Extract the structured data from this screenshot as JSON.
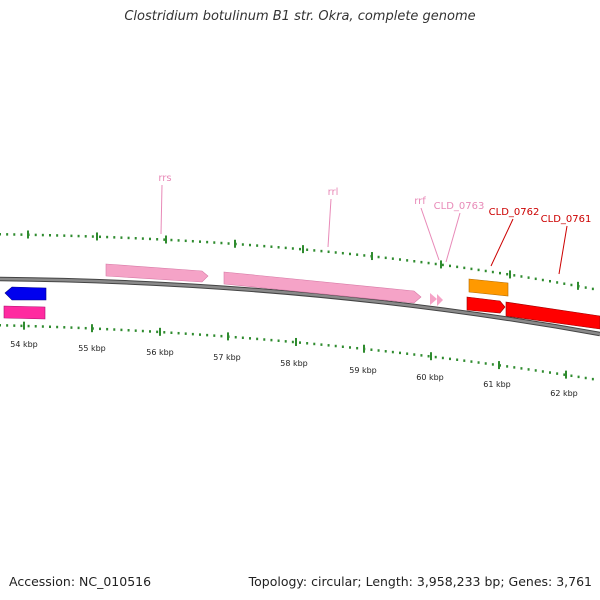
{
  "title": "Clostridium botulinum B1 str. Okra, complete genome",
  "footer": {
    "accession": "Accession: NC_010516",
    "summary": "Topology: circular; Length: 3,958,233 bp; Genes: 3,761"
  },
  "colors": {
    "backbone": "#8a8a8a",
    "tick_green": "#2e8b2e",
    "rna": "#f5a3c7",
    "rna_label": "#e88ab8",
    "cds_red": "#ff0000",
    "cds_red_label": "#cc0000",
    "orange": "#ff9900",
    "blue": "#0000ee",
    "magenta": "#ff2aa0"
  },
  "axis": {
    "unit": "kbp",
    "ticks": [
      "54 kbp",
      "55 kbp",
      "56 kbp",
      "57 kbp",
      "58 kbp",
      "59 kbp",
      "60 kbp",
      "61 kbp",
      "62 kbp"
    ]
  },
  "genes": [
    {
      "name": "",
      "type": "CDS",
      "strand": "-",
      "color": "blue"
    },
    {
      "name": "",
      "type": "CDS",
      "strand": "-",
      "color": "magenta"
    },
    {
      "name": "rrs",
      "type": "rRNA",
      "strand": "+",
      "color": "rna"
    },
    {
      "name": "rrl",
      "type": "rRNA",
      "strand": "+",
      "color": "rna"
    },
    {
      "name": "rrf",
      "type": "rRNA",
      "strand": "+",
      "color": "rna"
    },
    {
      "name": "CLD_0763",
      "type": "tRNA",
      "strand": "+",
      "color": "rna"
    },
    {
      "name": "CLD_0762",
      "type": "CDS",
      "strand": "+",
      "color": "orange"
    },
    {
      "name": "CLD_0761",
      "type": "CDS",
      "strand": "+",
      "color": "cds_red"
    }
  ]
}
